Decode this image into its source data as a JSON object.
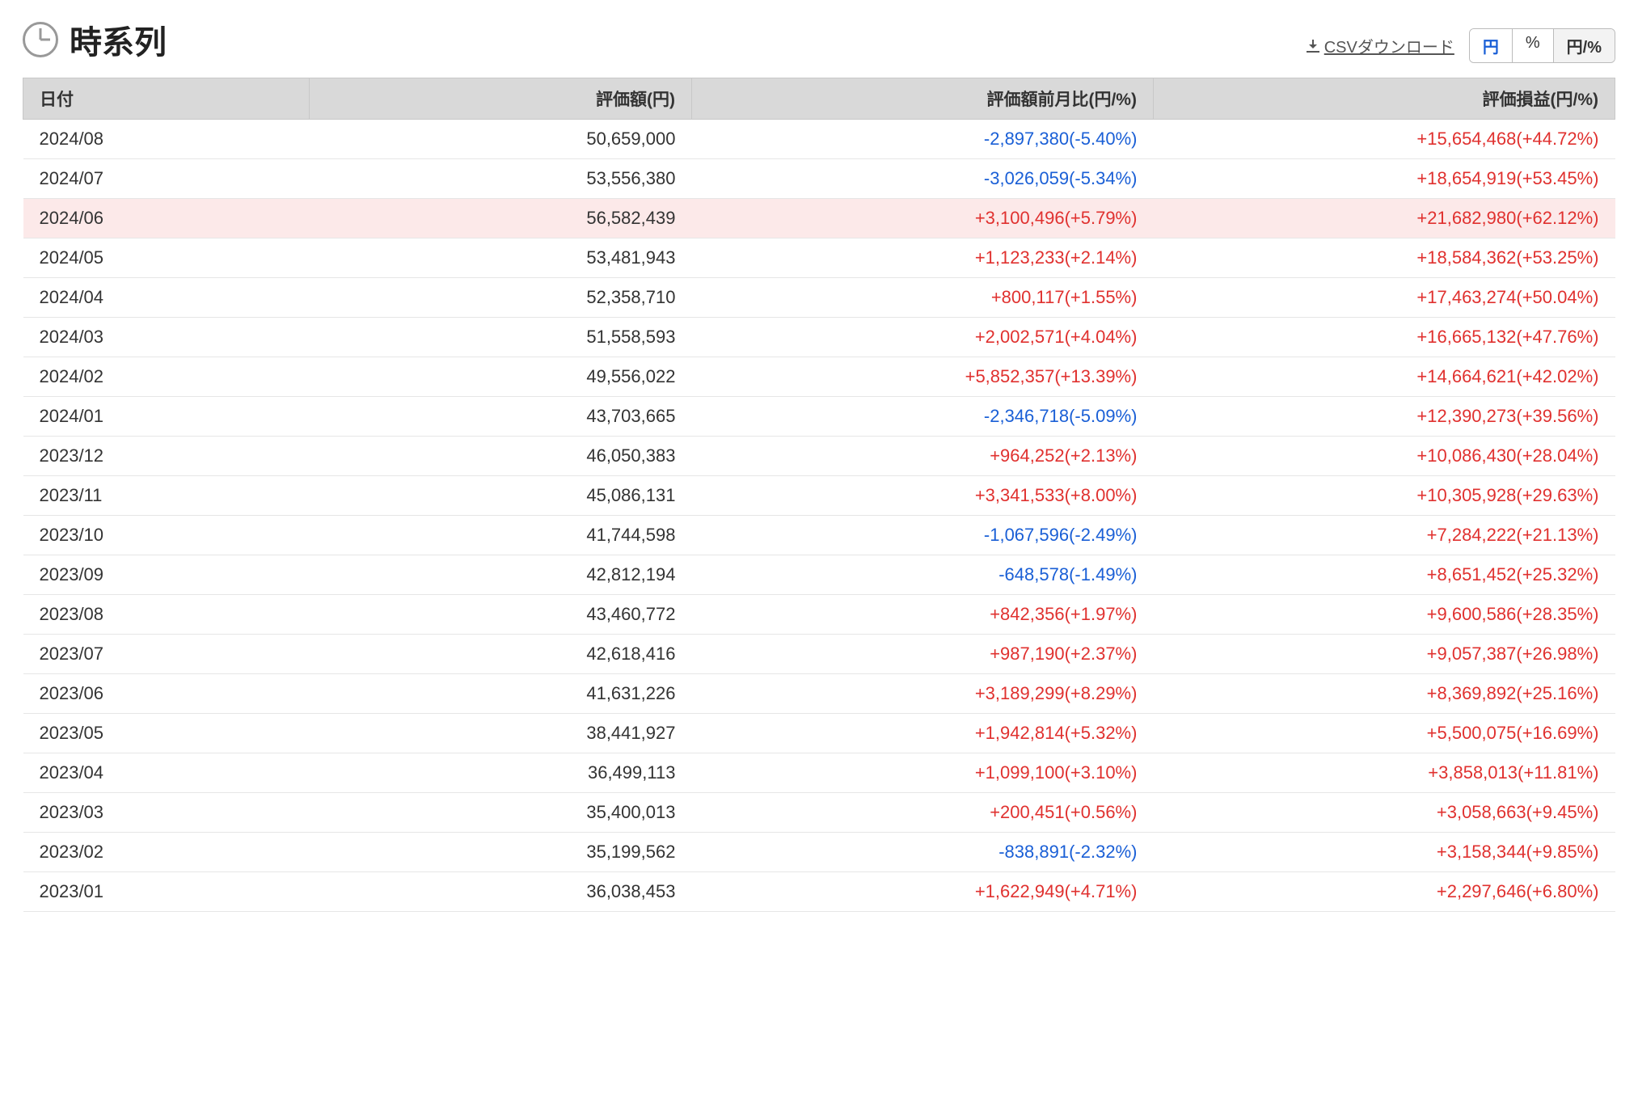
{
  "header": {
    "title": "時系列",
    "csv_label": "CSVダウンロード",
    "toggles": [
      "円",
      "%",
      "円/%"
    ],
    "active_toggle_index": 2,
    "highlight_indices": [
      0
    ]
  },
  "columns": [
    "日付",
    "評価額(円)",
    "評価額前月比(円/%)",
    "評価損益(円/%)"
  ],
  "rows": [
    {
      "date": "2024/08",
      "value": "50,659,000",
      "mom_amount": "-2,897,380",
      "mom_pct": "-5.40%",
      "mom_sign": "neg",
      "pl_amount": "+15,654,468",
      "pl_pct": "+44.72%",
      "pl_sign": "pos",
      "highlight": false
    },
    {
      "date": "2024/07",
      "value": "53,556,380",
      "mom_amount": "-3,026,059",
      "mom_pct": "-5.34%",
      "mom_sign": "neg",
      "pl_amount": "+18,654,919",
      "pl_pct": "+53.45%",
      "pl_sign": "pos",
      "highlight": false
    },
    {
      "date": "2024/06",
      "value": "56,582,439",
      "mom_amount": "+3,100,496",
      "mom_pct": "+5.79%",
      "mom_sign": "pos",
      "pl_amount": "+21,682,980",
      "pl_pct": "+62.12%",
      "pl_sign": "pos",
      "highlight": true
    },
    {
      "date": "2024/05",
      "value": "53,481,943",
      "mom_amount": "+1,123,233",
      "mom_pct": "+2.14%",
      "mom_sign": "pos",
      "pl_amount": "+18,584,362",
      "pl_pct": "+53.25%",
      "pl_sign": "pos",
      "highlight": false
    },
    {
      "date": "2024/04",
      "value": "52,358,710",
      "mom_amount": "+800,117",
      "mom_pct": "+1.55%",
      "mom_sign": "pos",
      "pl_amount": "+17,463,274",
      "pl_pct": "+50.04%",
      "pl_sign": "pos",
      "highlight": false
    },
    {
      "date": "2024/03",
      "value": "51,558,593",
      "mom_amount": "+2,002,571",
      "mom_pct": "+4.04%",
      "mom_sign": "pos",
      "pl_amount": "+16,665,132",
      "pl_pct": "+47.76%",
      "pl_sign": "pos",
      "highlight": false
    },
    {
      "date": "2024/02",
      "value": "49,556,022",
      "mom_amount": "+5,852,357",
      "mom_pct": "+13.39%",
      "mom_sign": "pos",
      "pl_amount": "+14,664,621",
      "pl_pct": "+42.02%",
      "pl_sign": "pos",
      "highlight": false
    },
    {
      "date": "2024/01",
      "value": "43,703,665",
      "mom_amount": "-2,346,718",
      "mom_pct": "-5.09%",
      "mom_sign": "neg",
      "pl_amount": "+12,390,273",
      "pl_pct": "+39.56%",
      "pl_sign": "pos",
      "highlight": false
    },
    {
      "date": "2023/12",
      "value": "46,050,383",
      "mom_amount": "+964,252",
      "mom_pct": "+2.13%",
      "mom_sign": "pos",
      "pl_amount": "+10,086,430",
      "pl_pct": "+28.04%",
      "pl_sign": "pos",
      "highlight": false
    },
    {
      "date": "2023/11",
      "value": "45,086,131",
      "mom_amount": "+3,341,533",
      "mom_pct": "+8.00%",
      "mom_sign": "pos",
      "pl_amount": "+10,305,928",
      "pl_pct": "+29.63%",
      "pl_sign": "pos",
      "highlight": false
    },
    {
      "date": "2023/10",
      "value": "41,744,598",
      "mom_amount": "-1,067,596",
      "mom_pct": "-2.49%",
      "mom_sign": "neg",
      "pl_amount": "+7,284,222",
      "pl_pct": "+21.13%",
      "pl_sign": "pos",
      "highlight": false
    },
    {
      "date": "2023/09",
      "value": "42,812,194",
      "mom_amount": "-648,578",
      "mom_pct": "-1.49%",
      "mom_sign": "neg",
      "pl_amount": "+8,651,452",
      "pl_pct": "+25.32%",
      "pl_sign": "pos",
      "highlight": false
    },
    {
      "date": "2023/08",
      "value": "43,460,772",
      "mom_amount": "+842,356",
      "mom_pct": "+1.97%",
      "mom_sign": "pos",
      "pl_amount": "+9,600,586",
      "pl_pct": "+28.35%",
      "pl_sign": "pos",
      "highlight": false
    },
    {
      "date": "2023/07",
      "value": "42,618,416",
      "mom_amount": "+987,190",
      "mom_pct": "+2.37%",
      "mom_sign": "pos",
      "pl_amount": "+9,057,387",
      "pl_pct": "+26.98%",
      "pl_sign": "pos",
      "highlight": false
    },
    {
      "date": "2023/06",
      "value": "41,631,226",
      "mom_amount": "+3,189,299",
      "mom_pct": "+8.29%",
      "mom_sign": "pos",
      "pl_amount": "+8,369,892",
      "pl_pct": "+25.16%",
      "pl_sign": "pos",
      "highlight": false
    },
    {
      "date": "2023/05",
      "value": "38,441,927",
      "mom_amount": "+1,942,814",
      "mom_pct": "+5.32%",
      "mom_sign": "pos",
      "pl_amount": "+5,500,075",
      "pl_pct": "+16.69%",
      "pl_sign": "pos",
      "highlight": false
    },
    {
      "date": "2023/04",
      "value": "36,499,113",
      "mom_amount": "+1,099,100",
      "mom_pct": "+3.10%",
      "mom_sign": "pos",
      "pl_amount": "+3,858,013",
      "pl_pct": "+11.81%",
      "pl_sign": "pos",
      "highlight": false
    },
    {
      "date": "2023/03",
      "value": "35,400,013",
      "mom_amount": "+200,451",
      "mom_pct": "+0.56%",
      "mom_sign": "pos",
      "pl_amount": "+3,058,663",
      "pl_pct": "+9.45%",
      "pl_sign": "pos",
      "highlight": false
    },
    {
      "date": "2023/02",
      "value": "35,199,562",
      "mom_amount": "-838,891",
      "mom_pct": "-2.32%",
      "mom_sign": "neg",
      "pl_amount": "+3,158,344",
      "pl_pct": "+9.85%",
      "pl_sign": "pos",
      "highlight": false
    },
    {
      "date": "2023/01",
      "value": "36,038,453",
      "mom_amount": "+1,622,949",
      "mom_pct": "+4.71%",
      "mom_sign": "pos",
      "pl_amount": "+2,297,646",
      "pl_pct": "+6.80%",
      "pl_sign": "pos",
      "highlight": false
    }
  ],
  "colors": {
    "positive": "#e0312f",
    "negative": "#1a5fd6",
    "header_bg": "#d9d9d9",
    "row_border": "#e6e6e6",
    "highlight_bg": "#fce9e9",
    "text": "#333333"
  }
}
